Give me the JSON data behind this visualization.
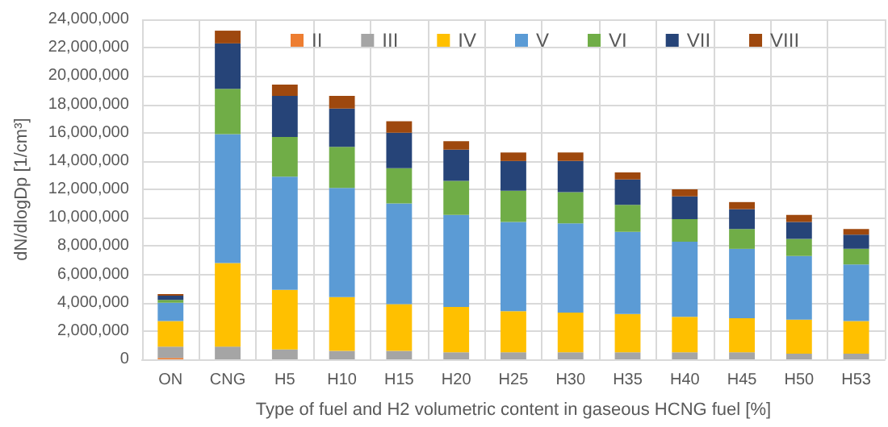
{
  "chart_data": {
    "type": "bar",
    "stacked": true,
    "xlabel": "Type of fuel and H2 volumetric content in gaseous HCNG fuel [%]",
    "ylabel": "dN/dlogDp [1/cm³]",
    "categories": [
      "ON",
      "CNG",
      "H5",
      "H10",
      "H15",
      "H20",
      "H25",
      "H30",
      "H35",
      "H40",
      "H45",
      "H50",
      "H53"
    ],
    "series": [
      {
        "name": "II",
        "color": "#ed7d31",
        "values": [
          100000,
          0,
          0,
          0,
          0,
          0,
          0,
          0,
          0,
          0,
          0,
          0,
          0
        ]
      },
      {
        "name": "III",
        "color": "#a5a5a5",
        "values": [
          800000,
          900000,
          700000,
          600000,
          600000,
          500000,
          500000,
          500000,
          500000,
          500000,
          500000,
          400000,
          400000
        ]
      },
      {
        "name": "IV",
        "color": "#ffc000",
        "values": [
          1800000,
          5900000,
          4200000,
          3800000,
          3300000,
          3200000,
          2900000,
          2800000,
          2700000,
          2500000,
          2400000,
          2400000,
          2300000
        ]
      },
      {
        "name": "V",
        "color": "#5b9bd5",
        "values": [
          1300000,
          9100000,
          8000000,
          7700000,
          7100000,
          6500000,
          6300000,
          6300000,
          5800000,
          5300000,
          4900000,
          4500000,
          4000000
        ]
      },
      {
        "name": "VI",
        "color": "#70ad47",
        "values": [
          200000,
          3200000,
          2800000,
          2900000,
          2500000,
          2400000,
          2200000,
          2200000,
          1900000,
          1600000,
          1400000,
          1200000,
          1100000
        ]
      },
      {
        "name": "VII",
        "color": "#264478",
        "values": [
          300000,
          3200000,
          2900000,
          2700000,
          2500000,
          2200000,
          2100000,
          2200000,
          1800000,
          1600000,
          1400000,
          1200000,
          1000000
        ]
      },
      {
        "name": "VIII",
        "color": "#9e480e",
        "values": [
          100000,
          900000,
          800000,
          900000,
          800000,
          600000,
          600000,
          600000,
          500000,
          500000,
          500000,
          500000,
          400000
        ]
      }
    ],
    "ylim": [
      0,
      24000000
    ],
    "yticks": [
      0,
      {
        "value": 2000000,
        "label": "2,000,000"
      },
      {
        "value": 4000000,
        "label": "4,000,000"
      },
      {
        "value": 6000000,
        "label": "6,000,000"
      },
      {
        "value": 8000000,
        "label": "8,000,000"
      },
      {
        "value": 10000000,
        "label": "10,000,000"
      },
      {
        "value": 12000000,
        "label": "12,000,000"
      },
      {
        "value": 14000000,
        "label": "14,000,000"
      },
      {
        "value": 16000000,
        "label": "16,000,000"
      },
      {
        "value": 18000000,
        "label": "18,000,000"
      },
      {
        "value": 20000000,
        "label": "20,000,000"
      },
      {
        "value": 22000000,
        "label": "22,000,000"
      },
      {
        "value": 24000000,
        "label": "24,000,000"
      }
    ],
    "grid": true,
    "legend": "top"
  }
}
